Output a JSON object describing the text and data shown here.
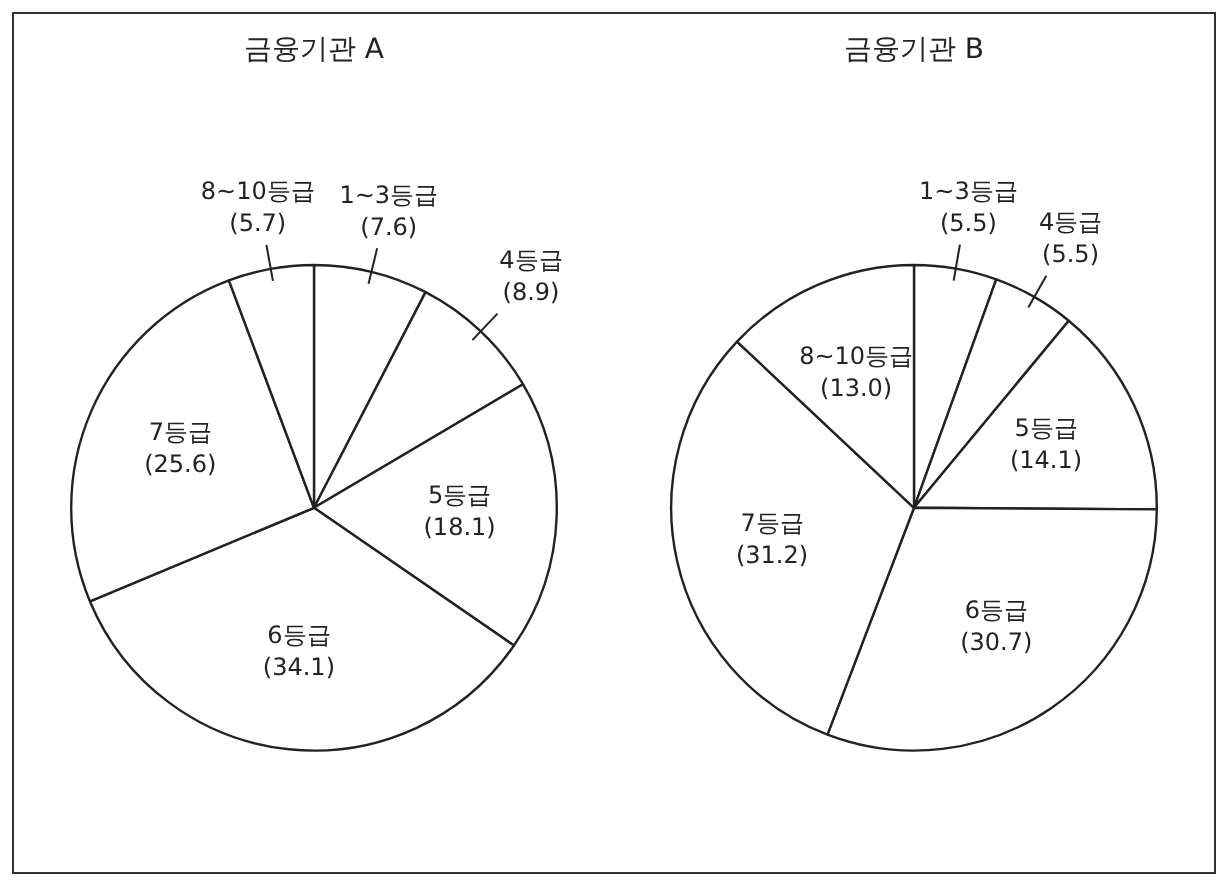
{
  "chart_data": [
    {
      "type": "pie",
      "title": "금융기관 A",
      "categories": [
        "1~3등급",
        "4등급",
        "5등급",
        "6등급",
        "7등급",
        "8~10등급"
      ],
      "values": [
        7.6,
        8.9,
        18.1,
        34.1,
        25.6,
        5.7
      ],
      "value_labels": [
        "(7.6)",
        "(8.9)",
        "(18.1)",
        "(34.1)",
        "(25.6)",
        "(5.7)"
      ],
      "colors": [
        "#ffffff",
        "#ffffff",
        "#ffffff",
        "#ffffff",
        "#ffffff",
        "#ffffff"
      ],
      "legend": false
    },
    {
      "type": "pie",
      "title": "금융기관 B",
      "categories": [
        "1~3등급",
        "4등급",
        "5등급",
        "6등급",
        "7등급",
        "8~10등급"
      ],
      "values": [
        5.5,
        5.5,
        14.1,
        30.7,
        31.2,
        13.0
      ],
      "value_labels": [
        "(5.5)",
        "(5.5)",
        "(14.1)",
        "(30.7)",
        "(31.2)",
        "(13.0)"
      ],
      "colors": [
        "#ffffff",
        "#ffffff",
        "#ffffff",
        "#ffffff",
        "#ffffff",
        "#ffffff"
      ],
      "legend": false
    }
  ]
}
